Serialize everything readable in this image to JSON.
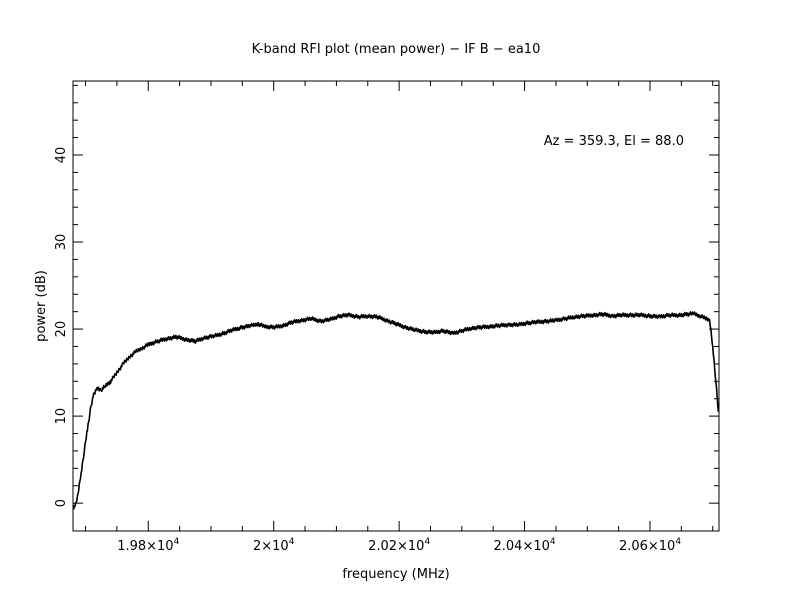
{
  "chart_data": {
    "type": "line",
    "title": "K-band RFI plot (mean power) − IF B − ea10",
    "xlabel": "frequency (MHz)",
    "ylabel": "power (dB)",
    "annotation": "Az = 359.3, El = 88.0",
    "xlim": [
      19680,
      20710
    ],
    "ylim": [
      -3.2,
      48.5
    ],
    "x_ticks": [
      {
        "value": 19800,
        "mantissa": "1.98×10",
        "exp": "4"
      },
      {
        "value": 20000,
        "mantissa": "2×10",
        "exp": "4"
      },
      {
        "value": 20200,
        "mantissa": "2.02×10",
        "exp": "4"
      },
      {
        "value": 20400,
        "mantissa": "2.04×10",
        "exp": "4"
      },
      {
        "value": 20600,
        "mantissa": "2.06×10",
        "exp": "4"
      }
    ],
    "y_ticks": [
      0,
      10,
      20,
      30,
      40
    ],
    "grid": false,
    "series": [
      {
        "color": "#000000",
        "x": [
          19681,
          19684,
          19688,
          19693,
          19698,
          19703,
          19708,
          19713,
          19718,
          19725,
          19732,
          19740,
          19750,
          19760,
          19770,
          19780,
          19790,
          19800,
          19815,
          19830,
          19845,
          19860,
          19875,
          19890,
          19905,
          19920,
          19935,
          19950,
          19965,
          19975,
          19985,
          20000,
          20015,
          20030,
          20045,
          20060,
          20075,
          20090,
          20105,
          20120,
          20135,
          20150,
          20165,
          20180,
          20195,
          20210,
          20225,
          20240,
          20255,
          20270,
          20285,
          20300,
          20315,
          20330,
          20345,
          20360,
          20375,
          20390,
          20405,
          20420,
          20435,
          20450,
          20465,
          20480,
          20495,
          20510,
          20525,
          20540,
          20555,
          20570,
          20585,
          20600,
          20615,
          20630,
          20645,
          20660,
          20670,
          20680,
          20690,
          20695,
          20700,
          20705,
          20709
        ],
        "y": [
          -0.5,
          -0.2,
          1.0,
          3.5,
          6.0,
          8.5,
          10.8,
          12.5,
          13.2,
          13.0,
          13.5,
          14.0,
          15.0,
          16.0,
          16.8,
          17.4,
          17.8,
          18.2,
          18.6,
          18.9,
          19.1,
          18.8,
          18.6,
          19.0,
          19.2,
          19.5,
          19.9,
          20.2,
          20.4,
          20.6,
          20.3,
          20.2,
          20.4,
          20.8,
          21.0,
          21.2,
          20.9,
          21.1,
          21.5,
          21.6,
          21.4,
          21.5,
          21.4,
          21.0,
          20.6,
          20.2,
          19.9,
          19.7,
          19.6,
          19.8,
          19.5,
          19.8,
          20.1,
          20.2,
          20.3,
          20.4,
          20.5,
          20.5,
          20.7,
          20.8,
          20.9,
          21.0,
          21.2,
          21.4,
          21.5,
          21.6,
          21.7,
          21.5,
          21.6,
          21.6,
          21.6,
          21.5,
          21.4,
          21.6,
          21.6,
          21.7,
          21.8,
          21.5,
          21.2,
          21.0,
          18.0,
          14.0,
          10.5
        ]
      }
    ]
  }
}
